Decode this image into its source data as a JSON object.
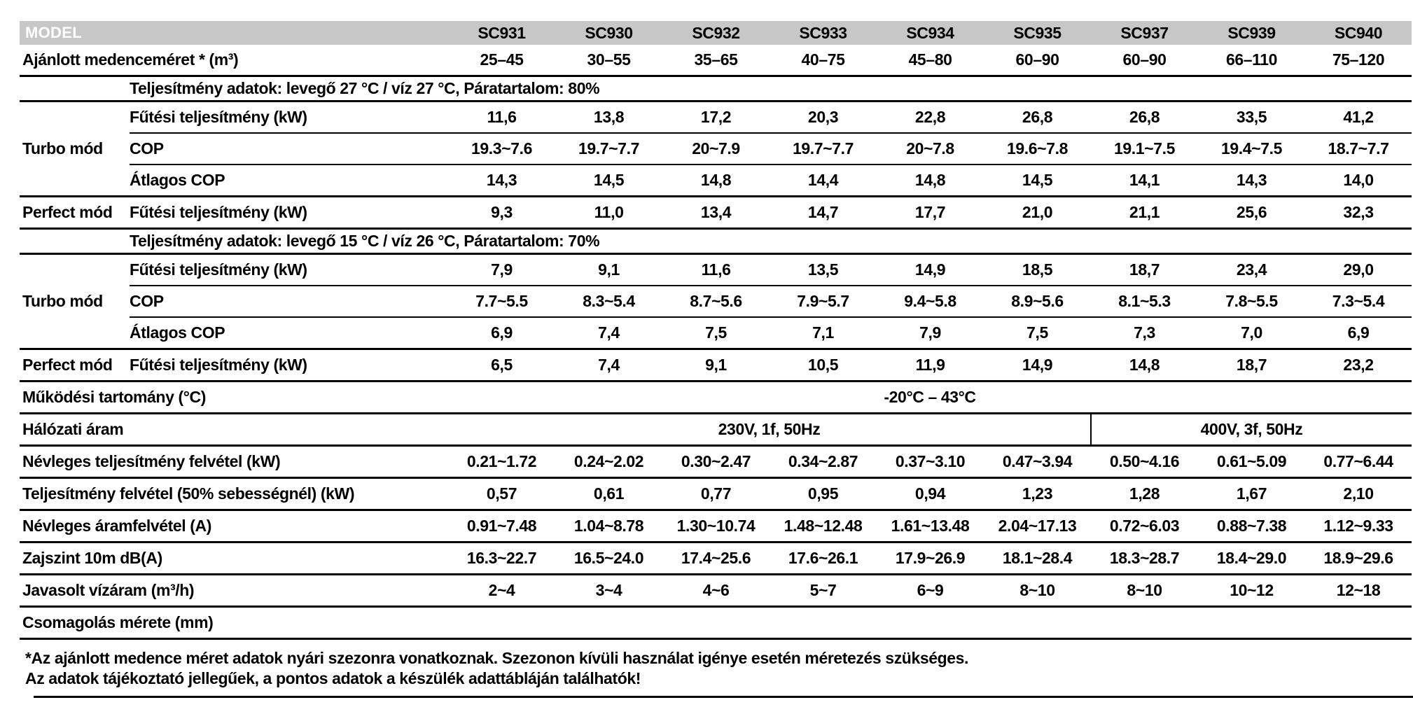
{
  "colors": {
    "header_bg": "#c7c7c7",
    "header_text": "#ffffff",
    "line": "#000000",
    "text": "#000000"
  },
  "header": {
    "model_label": "MODEL",
    "models": [
      "SC931",
      "SC930",
      "SC932",
      "SC933",
      "SC934",
      "SC935",
      "SC937",
      "SC939",
      "SC940"
    ]
  },
  "pool_row": {
    "label": "Ajánlott medenceméret * (m³)",
    "values": [
      "25–45",
      "30–55",
      "35–65",
      "40–75",
      "45–80",
      "60–90",
      "60–90",
      "66–110",
      "75–120"
    ]
  },
  "sections": [
    {
      "condition_header": "Teljesítmény adatok: levegő 27 °C / víz 27 °C, Páratartalom: 80%",
      "groups": [
        {
          "label": "Turbo mód",
          "rows": [
            {
              "label": "Fűtési teljesítmény (kW)",
              "values": [
                "11,6",
                "13,8",
                "17,2",
                "20,3",
                "22,8",
                "26,8",
                "26,8",
                "33,5",
                "41,2"
              ]
            },
            {
              "label": "COP",
              "values": [
                "19.3~7.6",
                "19.7~7.7",
                "20~7.9",
                "19.7~7.7",
                "20~7.8",
                "19.6~7.8",
                "19.1~7.5",
                "19.4~7.5",
                "18.7~7.7"
              ]
            },
            {
              "label": "Átlagos COP",
              "values": [
                "14,3",
                "14,5",
                "14,8",
                "14,4",
                "14,8",
                "14,5",
                "14,1",
                "14,3",
                "14,0"
              ]
            }
          ]
        },
        {
          "label": "Perfect mód",
          "rows": [
            {
              "label": "Fűtési teljesítmény (kW)",
              "values": [
                "9,3",
                "11,0",
                "13,4",
                "14,7",
                "17,7",
                "21,0",
                "21,1",
                "25,6",
                "32,3"
              ]
            }
          ]
        }
      ]
    },
    {
      "condition_header": "Teljesítmény adatok: levegő 15 °C / víz 26 °C, Páratartalom: 70%",
      "groups": [
        {
          "label": "Turbo mód",
          "rows": [
            {
              "label": "Fűtési teljesítmény (kW)",
              "values": [
                "7,9",
                "9,1",
                "11,6",
                "13,5",
                "14,9",
                "18,5",
                "18,7",
                "23,4",
                "29,0"
              ]
            },
            {
              "label": "COP",
              "values": [
                "7.7~5.5",
                "8.3~5.4",
                "8.7~5.6",
                "7.9~5.7",
                "9.4~5.8",
                "8.9~5.6",
                "8.1~5.3",
                "7.8~5.5",
                "7.3~5.4"
              ]
            },
            {
              "label": "Átlagos COP",
              "values": [
                "6,9",
                "7,4",
                "7,5",
                "7,1",
                "7,9",
                "7,5",
                "7,3",
                "7,0",
                "6,9"
              ]
            }
          ]
        },
        {
          "label": "Perfect mód",
          "rows": [
            {
              "label": "Fűtési teljesítmény (kW)",
              "values": [
                "6,5",
                "7,4",
                "9,1",
                "10,5",
                "11,9",
                "14,9",
                "14,8",
                "18,7",
                "23,2"
              ]
            }
          ]
        }
      ]
    }
  ],
  "operating_range": {
    "label": "Működési tartomány (°C)",
    "value": "-20°C – 43°C"
  },
  "power_supply": {
    "label": "Hálózati áram",
    "left": "230V, 1f, 50Hz",
    "right": "400V, 3f, 50Hz"
  },
  "spec_rows": [
    {
      "label": "Névleges teljesítmény felvétel (kW)",
      "values": [
        "0.21~1.72",
        "0.24~2.02",
        "0.30~2.47",
        "0.34~2.87",
        "0.37~3.10",
        "0.47~3.94",
        "0.50~4.16",
        "0.61~5.09",
        "0.77~6.44"
      ]
    },
    {
      "label": "Teljesítmény felvétel (50% sebességnél) (kW)",
      "values": [
        "0,57",
        "0,61",
        "0,77",
        "0,95",
        "0,94",
        "1,23",
        "1,28",
        "1,67",
        "2,10"
      ]
    },
    {
      "label": "Névleges áramfelvétel (A)",
      "values": [
        "0.91~7.48",
        "1.04~8.78",
        "1.30~10.74",
        "1.48~12.48",
        "1.61~13.48",
        "2.04~17.13",
        "0.72~6.03",
        "0.88~7.38",
        "1.12~9.33"
      ]
    },
    {
      "label": "Zajszint 10m dB(A)",
      "values": [
        "16.3~22.7",
        "16.5~24.0",
        "17.4~25.6",
        "17.6~26.1",
        "17.9~26.9",
        "18.1~28.4",
        "18.3~28.7",
        "18.4~29.0",
        "18.9~29.6"
      ]
    },
    {
      "label": "Javasolt vízáram (m³/h)",
      "values": [
        "2~4",
        "3~4",
        "4~6",
        "5~7",
        "6~9",
        "8~10",
        "8~10",
        "10~12",
        "12~18"
      ]
    },
    {
      "label": "Csomagolás mérete (mm)",
      "values": [
        "",
        "",
        "",
        "",
        "",
        "",
        "",
        "",
        ""
      ]
    }
  ],
  "footnotes": [
    "*Az ajánlott medence méret adatok nyári szezonra vonatkoznak. Szezonon kívüli használat igénye esetén méretezés szükséges.",
    "Az adatok tájékoztató jellegűek, a pontos adatok a készülék adattábláján találhatók!"
  ]
}
